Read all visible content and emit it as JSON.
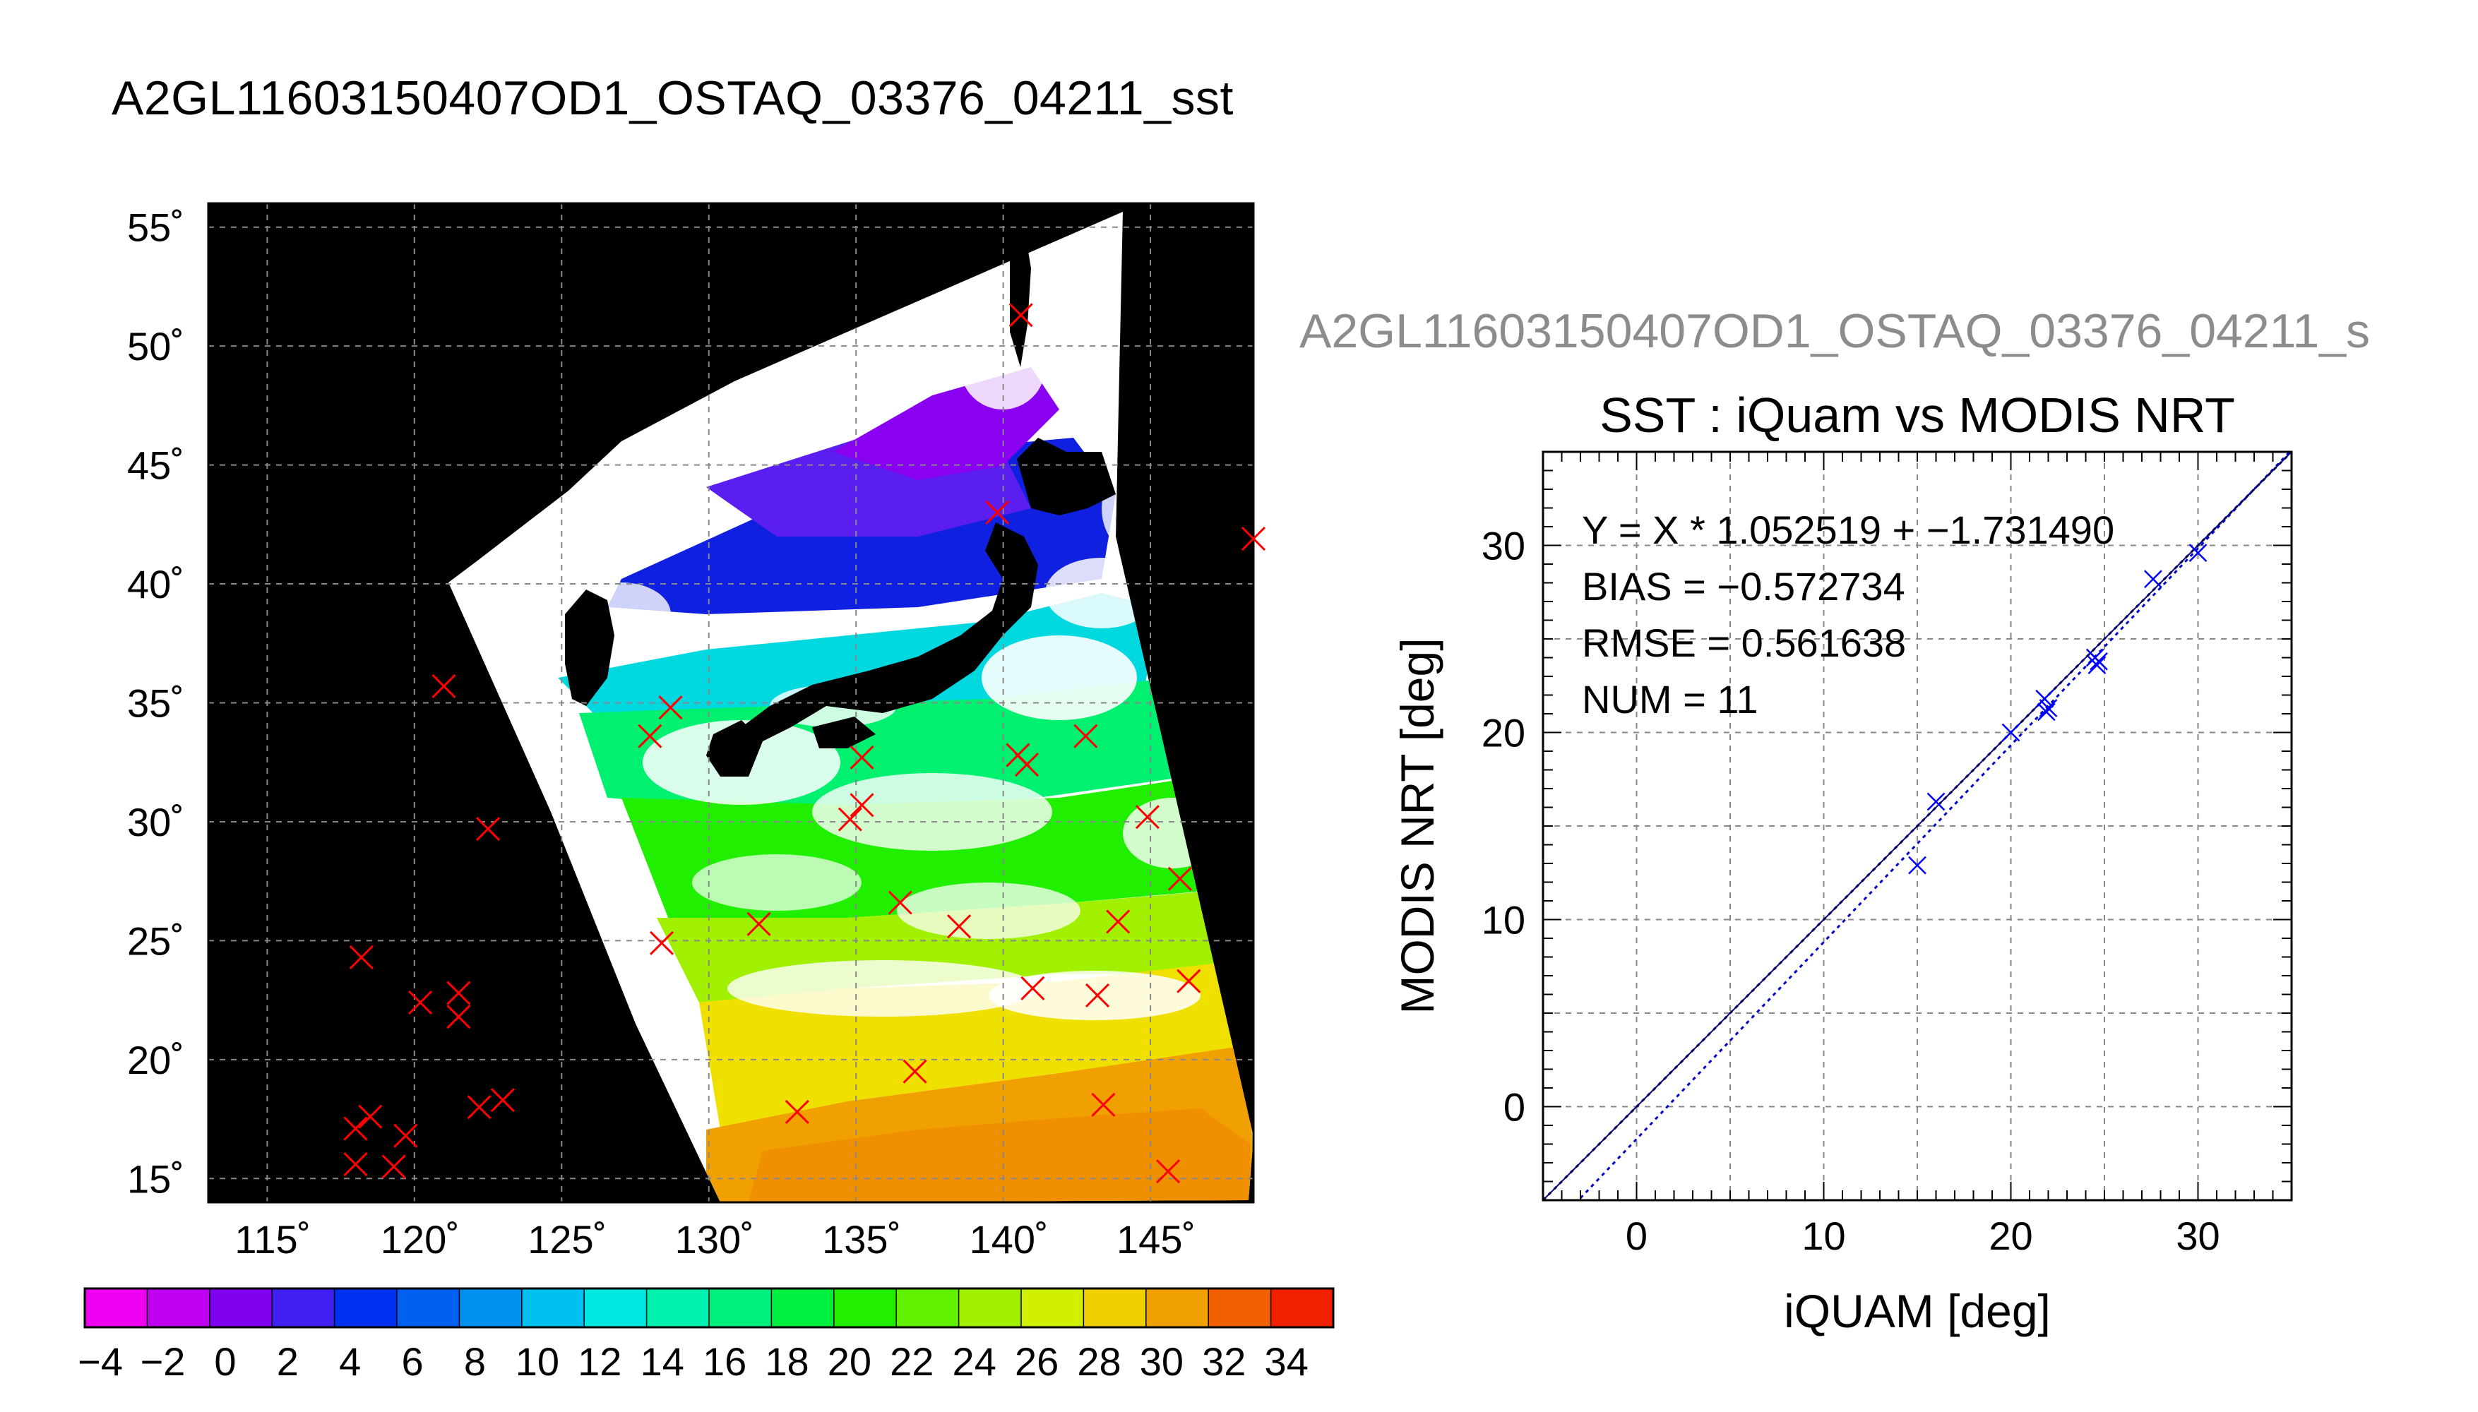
{
  "map_panel": {
    "title": "A2GL11603150407OD1_OSTAQ_03376_04211_sst",
    "lat_ticks": [
      {
        "value": 55,
        "label": "55˚"
      },
      {
        "value": 50,
        "label": "50˚"
      },
      {
        "value": 45,
        "label": "45˚"
      },
      {
        "value": 40,
        "label": "40˚"
      },
      {
        "value": 35,
        "label": "35˚"
      },
      {
        "value": 30,
        "label": "30˚"
      },
      {
        "value": 25,
        "label": "25˚"
      },
      {
        "value": 20,
        "label": "20˚"
      },
      {
        "value": 15,
        "label": "15˚"
      }
    ],
    "lon_ticks": [
      {
        "value": 115,
        "label": "115˚"
      },
      {
        "value": 120,
        "label": "120˚"
      },
      {
        "value": 125,
        "label": "125˚"
      },
      {
        "value": 130,
        "label": "130˚"
      },
      {
        "value": 135,
        "label": "135˚"
      },
      {
        "value": 140,
        "label": "140˚"
      },
      {
        "value": 145,
        "label": "145˚"
      }
    ],
    "colorbar": {
      "min": -4.5,
      "max": 35.5,
      "step": 2,
      "labels": [
        "−4",
        "−2",
        "0",
        "2",
        "4",
        "6",
        "8",
        "10",
        "12",
        "14",
        "16",
        "18",
        "20",
        "22",
        "24",
        "26",
        "28",
        "30",
        "32",
        "34"
      ],
      "colors": [
        "#f000f0",
        "#c000f0",
        "#8000f0",
        "#4020f0",
        "#0030f0",
        "#0060f0",
        "#0090f0",
        "#00c0f0",
        "#00e8e0",
        "#00f0b0",
        "#00f080",
        "#00f040",
        "#20f000",
        "#60f000",
        "#a0f000",
        "#d0f000",
        "#f0d000",
        "#f0a000",
        "#f06000",
        "#f02000"
      ]
    },
    "matchup_points": [
      {
        "lon": 118.2,
        "lat": 24.3
      },
      {
        "lon": 121.0,
        "lat": 35.7
      },
      {
        "lon": 122.5,
        "lat": 29.7
      },
      {
        "lon": 120.2,
        "lat": 22.4
      },
      {
        "lon": 121.5,
        "lat": 22.8
      },
      {
        "lon": 121.5,
        "lat": 21.8
      },
      {
        "lon": 118.5,
        "lat": 17.6
      },
      {
        "lon": 118.0,
        "lat": 17.1
      },
      {
        "lon": 119.7,
        "lat": 16.8
      },
      {
        "lon": 118.0,
        "lat": 15.6
      },
      {
        "lon": 119.3,
        "lat": 15.5
      },
      {
        "lon": 122.2,
        "lat": 18.0
      },
      {
        "lon": 123.0,
        "lat": 18.3
      },
      {
        "lon": 140.6,
        "lat": 51.3
      },
      {
        "lon": 148.5,
        "lat": 41.9
      },
      {
        "lon": 139.8,
        "lat": 43.0
      },
      {
        "lon": 128.7,
        "lat": 34.8
      },
      {
        "lon": 128.0,
        "lat": 33.6
      },
      {
        "lon": 135.2,
        "lat": 32.7
      },
      {
        "lon": 135.2,
        "lat": 30.7
      },
      {
        "lon": 134.8,
        "lat": 30.1
      },
      {
        "lon": 140.5,
        "lat": 32.8
      },
      {
        "lon": 140.8,
        "lat": 32.4
      },
      {
        "lon": 142.8,
        "lat": 33.6
      },
      {
        "lon": 144.9,
        "lat": 30.2
      },
      {
        "lon": 146.0,
        "lat": 27.6
      },
      {
        "lon": 128.4,
        "lat": 24.9
      },
      {
        "lon": 131.7,
        "lat": 25.7
      },
      {
        "lon": 136.5,
        "lat": 26.6
      },
      {
        "lon": 138.5,
        "lat": 25.6
      },
      {
        "lon": 143.9,
        "lat": 25.8
      },
      {
        "lon": 141.0,
        "lat": 23.0
      },
      {
        "lon": 143.2,
        "lat": 22.7
      },
      {
        "lon": 146.3,
        "lat": 23.3
      },
      {
        "lon": 137.0,
        "lat": 19.5
      },
      {
        "lon": 133.0,
        "lat": 17.8
      },
      {
        "lon": 143.4,
        "lat": 18.1
      },
      {
        "lon": 145.6,
        "lat": 15.3
      }
    ]
  },
  "scatter_panel": {
    "header": "A2GL11603150407OD1_OSTAQ_03376_04211_s",
    "title": "SST : iQuam vs MODIS NRT",
    "xlabel": "iQUAM [deg]",
    "ylabel": "MODIS NRT [deg]",
    "stats": [
      "Y = X * 1.052519 + −1.731490",
      "BIAS = −0.572734",
      "RMSE = 0.561638",
      "NUM = 11"
    ]
  },
  "chart_data": {
    "type": "scatter",
    "title": "SST : iQuam vs MODIS NRT",
    "xlabel": "iQUAM [deg]",
    "ylabel": "MODIS NRT [deg]",
    "xlim": [
      -5,
      35
    ],
    "ylim": [
      -5,
      35
    ],
    "x_ticks": [
      0,
      10,
      20,
      30
    ],
    "y_ticks": [
      0,
      10,
      20,
      30
    ],
    "grid": true,
    "series": [
      {
        "marker": "x",
        "color": "#0000ff",
        "points": [
          {
            "x": 15.0,
            "y": 12.9
          },
          {
            "x": 16.0,
            "y": 16.3
          },
          {
            "x": 20.0,
            "y": 20.0
          },
          {
            "x": 21.8,
            "y": 21.8
          },
          {
            "x": 21.9,
            "y": 21.1
          },
          {
            "x": 22.0,
            "y": 21.3
          },
          {
            "x": 24.5,
            "y": 24.0
          },
          {
            "x": 24.6,
            "y": 23.6
          },
          {
            "x": 24.7,
            "y": 23.8
          },
          {
            "x": 27.6,
            "y": 28.2
          },
          {
            "x": 30.0,
            "y": 29.6
          }
        ]
      }
    ],
    "lines": [
      {
        "slope": 1.0,
        "intercept": 0.0,
        "color": "#000000",
        "style": "dashed"
      },
      {
        "slope": 1.052519,
        "intercept": -1.73149,
        "color": "#0000cc",
        "style": "dashed"
      },
      {
        "slope": 1.0,
        "intercept": 0.0,
        "color": "#000080",
        "style": "solid"
      }
    ]
  }
}
